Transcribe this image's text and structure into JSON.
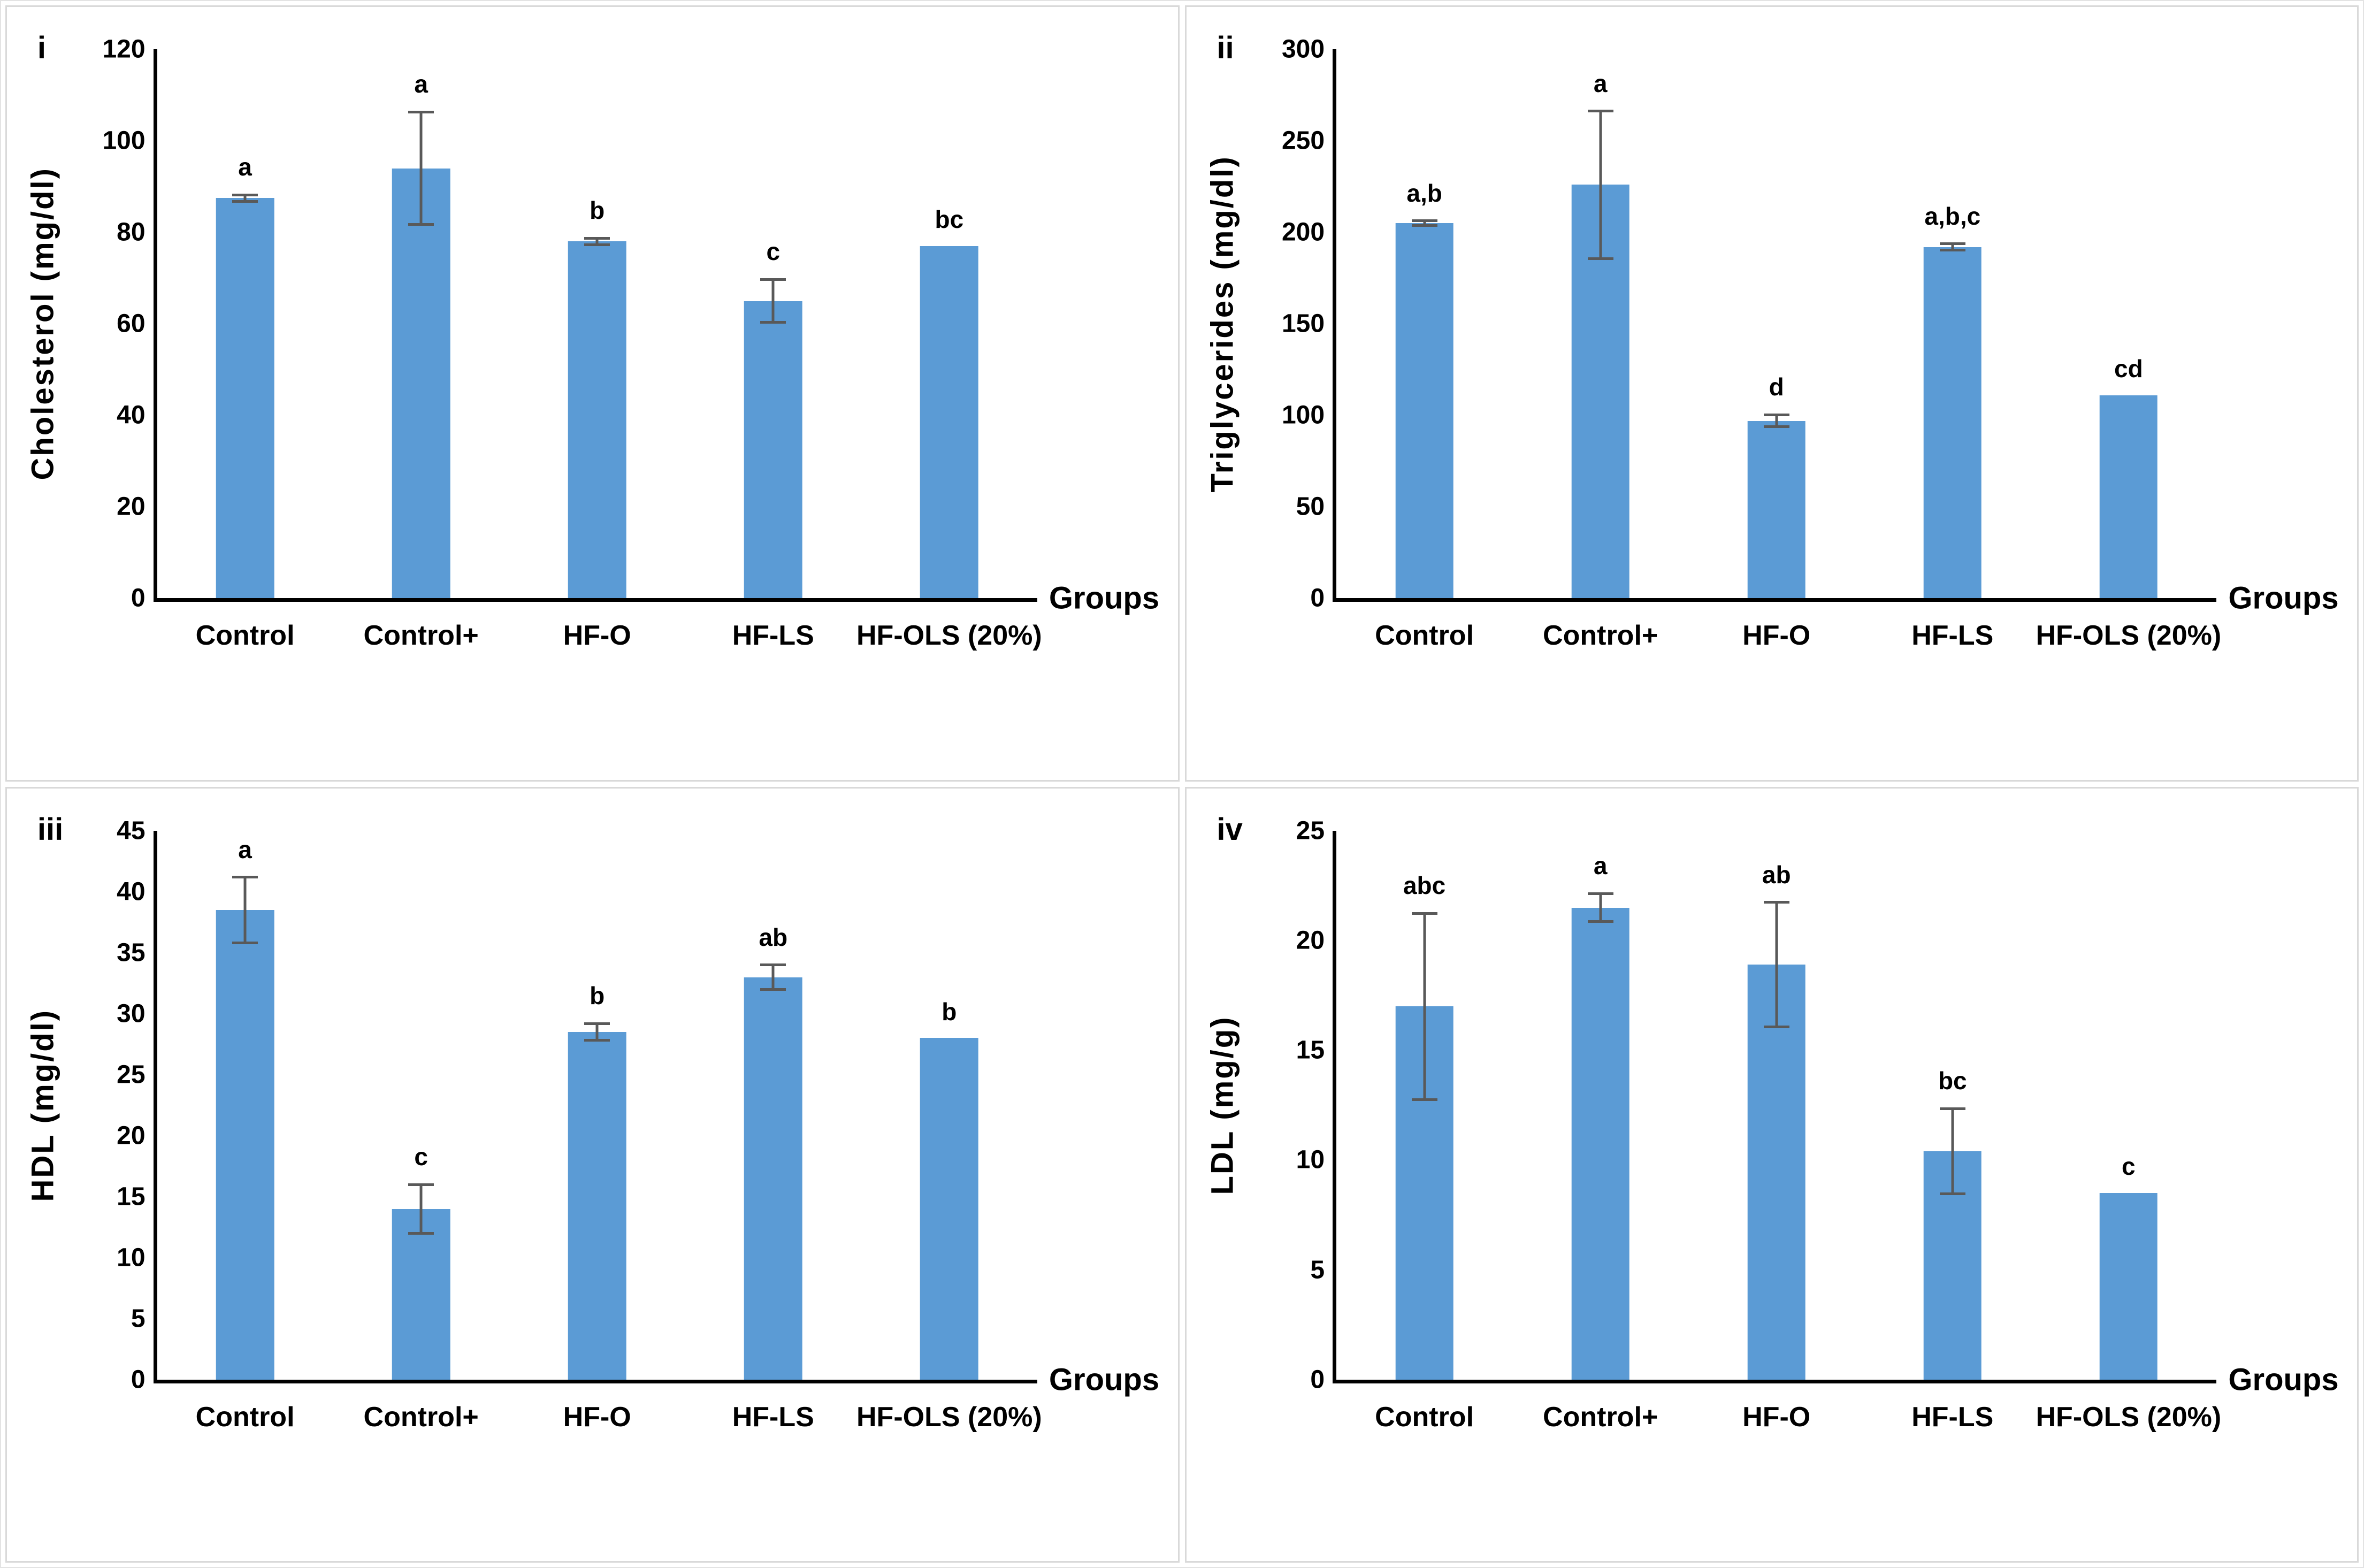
{
  "figure": {
    "background": "#ffffff",
    "panel_border": "#d9d9d9",
    "colors": {
      "bar": "#5B9BD5",
      "error_bar": "#595959",
      "axis": "#000000",
      "text": "#000000"
    }
  },
  "chart_data": [
    {
      "type": "bar",
      "panel_label": "i",
      "ylabel": "Cholesterol (mg/dl)",
      "xlabel": "Groups",
      "ylim": [
        0,
        120
      ],
      "ytick_step": 20,
      "grid": false,
      "legend": null,
      "categories": [
        "Control",
        "Control+",
        "HF-O",
        "HF-LS",
        "HF-OLS (20%)"
      ],
      "values": [
        87.5,
        94,
        78,
        65,
        77
      ],
      "errors": [
        1,
        12.6,
        1,
        5,
        null
      ],
      "sig_letters": [
        "a",
        "a",
        "b",
        "c",
        "bc"
      ]
    },
    {
      "type": "bar",
      "panel_label": "ii",
      "ylabel": "Triglycerides (mg/dl)",
      "xlabel": "Groups",
      "ylim": [
        0,
        300
      ],
      "ytick_step": 50,
      "grid": false,
      "legend": null,
      "categories": [
        "Control",
        "Control+",
        "HF-O",
        "HF-LS",
        "HF-OLS (20%)"
      ],
      "values": [
        205,
        226,
        97,
        192,
        111
      ],
      "errors": [
        2,
        41,
        4,
        2.5,
        null
      ],
      "sig_letters": [
        "a,b",
        "a",
        "d",
        "a,b,c",
        "cd"
      ]
    },
    {
      "type": "bar",
      "panel_label": "iii",
      "ylabel": "HDL (mg/dl)",
      "xlabel": "Groups",
      "ylim": [
        0,
        45
      ],
      "ytick_step": 5,
      "grid": false,
      "legend": null,
      "categories": [
        "Control",
        "Control+",
        "HF-O",
        "HF-LS",
        "HF-OLS (20%)"
      ],
      "values": [
        38.5,
        14,
        28.5,
        33,
        28
      ],
      "errors": [
        2.8,
        2.1,
        0.8,
        1.1,
        null
      ],
      "sig_letters": [
        "a",
        "c",
        "b",
        "ab",
        "b"
      ]
    },
    {
      "type": "bar",
      "panel_label": "iv",
      "ylabel": "LDL (mg/g)",
      "xlabel": "Groups",
      "ylim": [
        0,
        25
      ],
      "ytick_step": 5,
      "grid": false,
      "legend": null,
      "categories": [
        "Control",
        "Control+",
        "HF-O",
        "HF-LS",
        "HF-OLS (20%)"
      ],
      "values": [
        17,
        21.5,
        18.9,
        10.4,
        8.5
      ],
      "errors": [
        4.3,
        0.7,
        2.9,
        2,
        null
      ],
      "sig_letters": [
        "abc",
        "a",
        "ab",
        "bc",
        "c"
      ]
    }
  ]
}
